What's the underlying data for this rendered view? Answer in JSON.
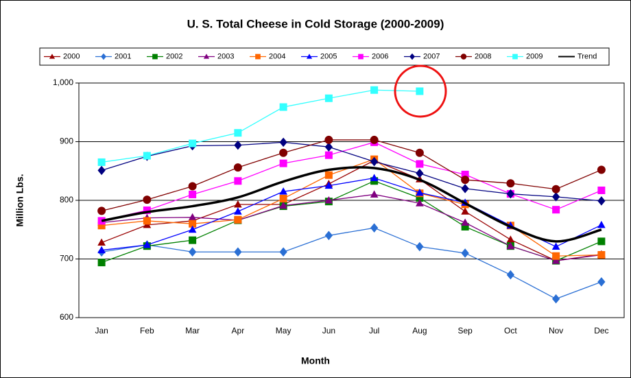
{
  "chart_data": {
    "type": "line",
    "title": "U. S. Total Cheese in Cold Storage (2000-2009)",
    "x_label": "Month",
    "y_label": "Million Lbs.",
    "categories": [
      "Jan",
      "Feb",
      "Mar",
      "Apr",
      "May",
      "Jun",
      "Jul",
      "Aug",
      "Sep",
      "Oct",
      "Nov",
      "Dec"
    ],
    "ylim": [
      600,
      1000
    ],
    "yticks": [
      600,
      700,
      800,
      900,
      {
        "value": 1000,
        "label": "1,000"
      }
    ],
    "grid": true,
    "legend": "top",
    "series": [
      {
        "name": "2000",
        "color": "#990000",
        "marker": "triangle",
        "values": [
          728,
          758,
          765,
          793,
          793,
          828,
          868,
          836,
          781,
          733,
          697,
          708
        ]
      },
      {
        "name": "2001",
        "color": "#2a6fd4",
        "marker": "diamond",
        "values": [
          712,
          724,
          712,
          712,
          712,
          740,
          753,
          721,
          710,
          673,
          632,
          661
        ]
      },
      {
        "name": "2002",
        "color": "#008000",
        "marker": "square",
        "values": [
          694,
          722,
          732,
          766,
          790,
          798,
          833,
          804,
          755,
          722,
          697,
          730
        ]
      },
      {
        "name": "2003",
        "color": "#800080",
        "marker": "triangle",
        "values": [
          762,
          770,
          771,
          766,
          791,
          800,
          810,
          795,
          762,
          722,
          697,
          707
        ]
      },
      {
        "name": "2004",
        "color": "#ff6600",
        "marker": "square",
        "values": [
          757,
          765,
          760,
          767,
          803,
          843,
          870,
          812,
          793,
          757,
          705,
          707
        ]
      },
      {
        "name": "2005",
        "color": "#0000ff",
        "marker": "triangle",
        "values": [
          715,
          724,
          750,
          781,
          815,
          825,
          838,
          813,
          796,
          757,
          721,
          758
        ]
      },
      {
        "name": "2006",
        "color": "#ff00ff",
        "marker": "square",
        "values": [
          765,
          783,
          810,
          833,
          863,
          877,
          899,
          862,
          844,
          811,
          784,
          817
        ]
      },
      {
        "name": "2007",
        "color": "#000080",
        "marker": "diamond",
        "values": [
          851,
          875,
          893,
          894,
          899,
          891,
          866,
          846,
          820,
          811,
          806,
          799
        ]
      },
      {
        "name": "2008",
        "color": "#800000",
        "marker": "circle",
        "values": [
          782,
          801,
          824,
          856,
          881,
          903,
          903,
          881,
          835,
          829,
          819,
          852
        ]
      },
      {
        "name": "2009",
        "color": "#33ffff",
        "marker": "square",
        "values": [
          865,
          876,
          897,
          915,
          959,
          974,
          988,
          986,
          null,
          null,
          null,
          null
        ]
      },
      {
        "name": "Trend",
        "color": "#000000",
        "smooth": true,
        "values": [
          765,
          780,
          790,
          805,
          832,
          852,
          855,
          835,
          795,
          755,
          730,
          750
        ]
      }
    ]
  }
}
